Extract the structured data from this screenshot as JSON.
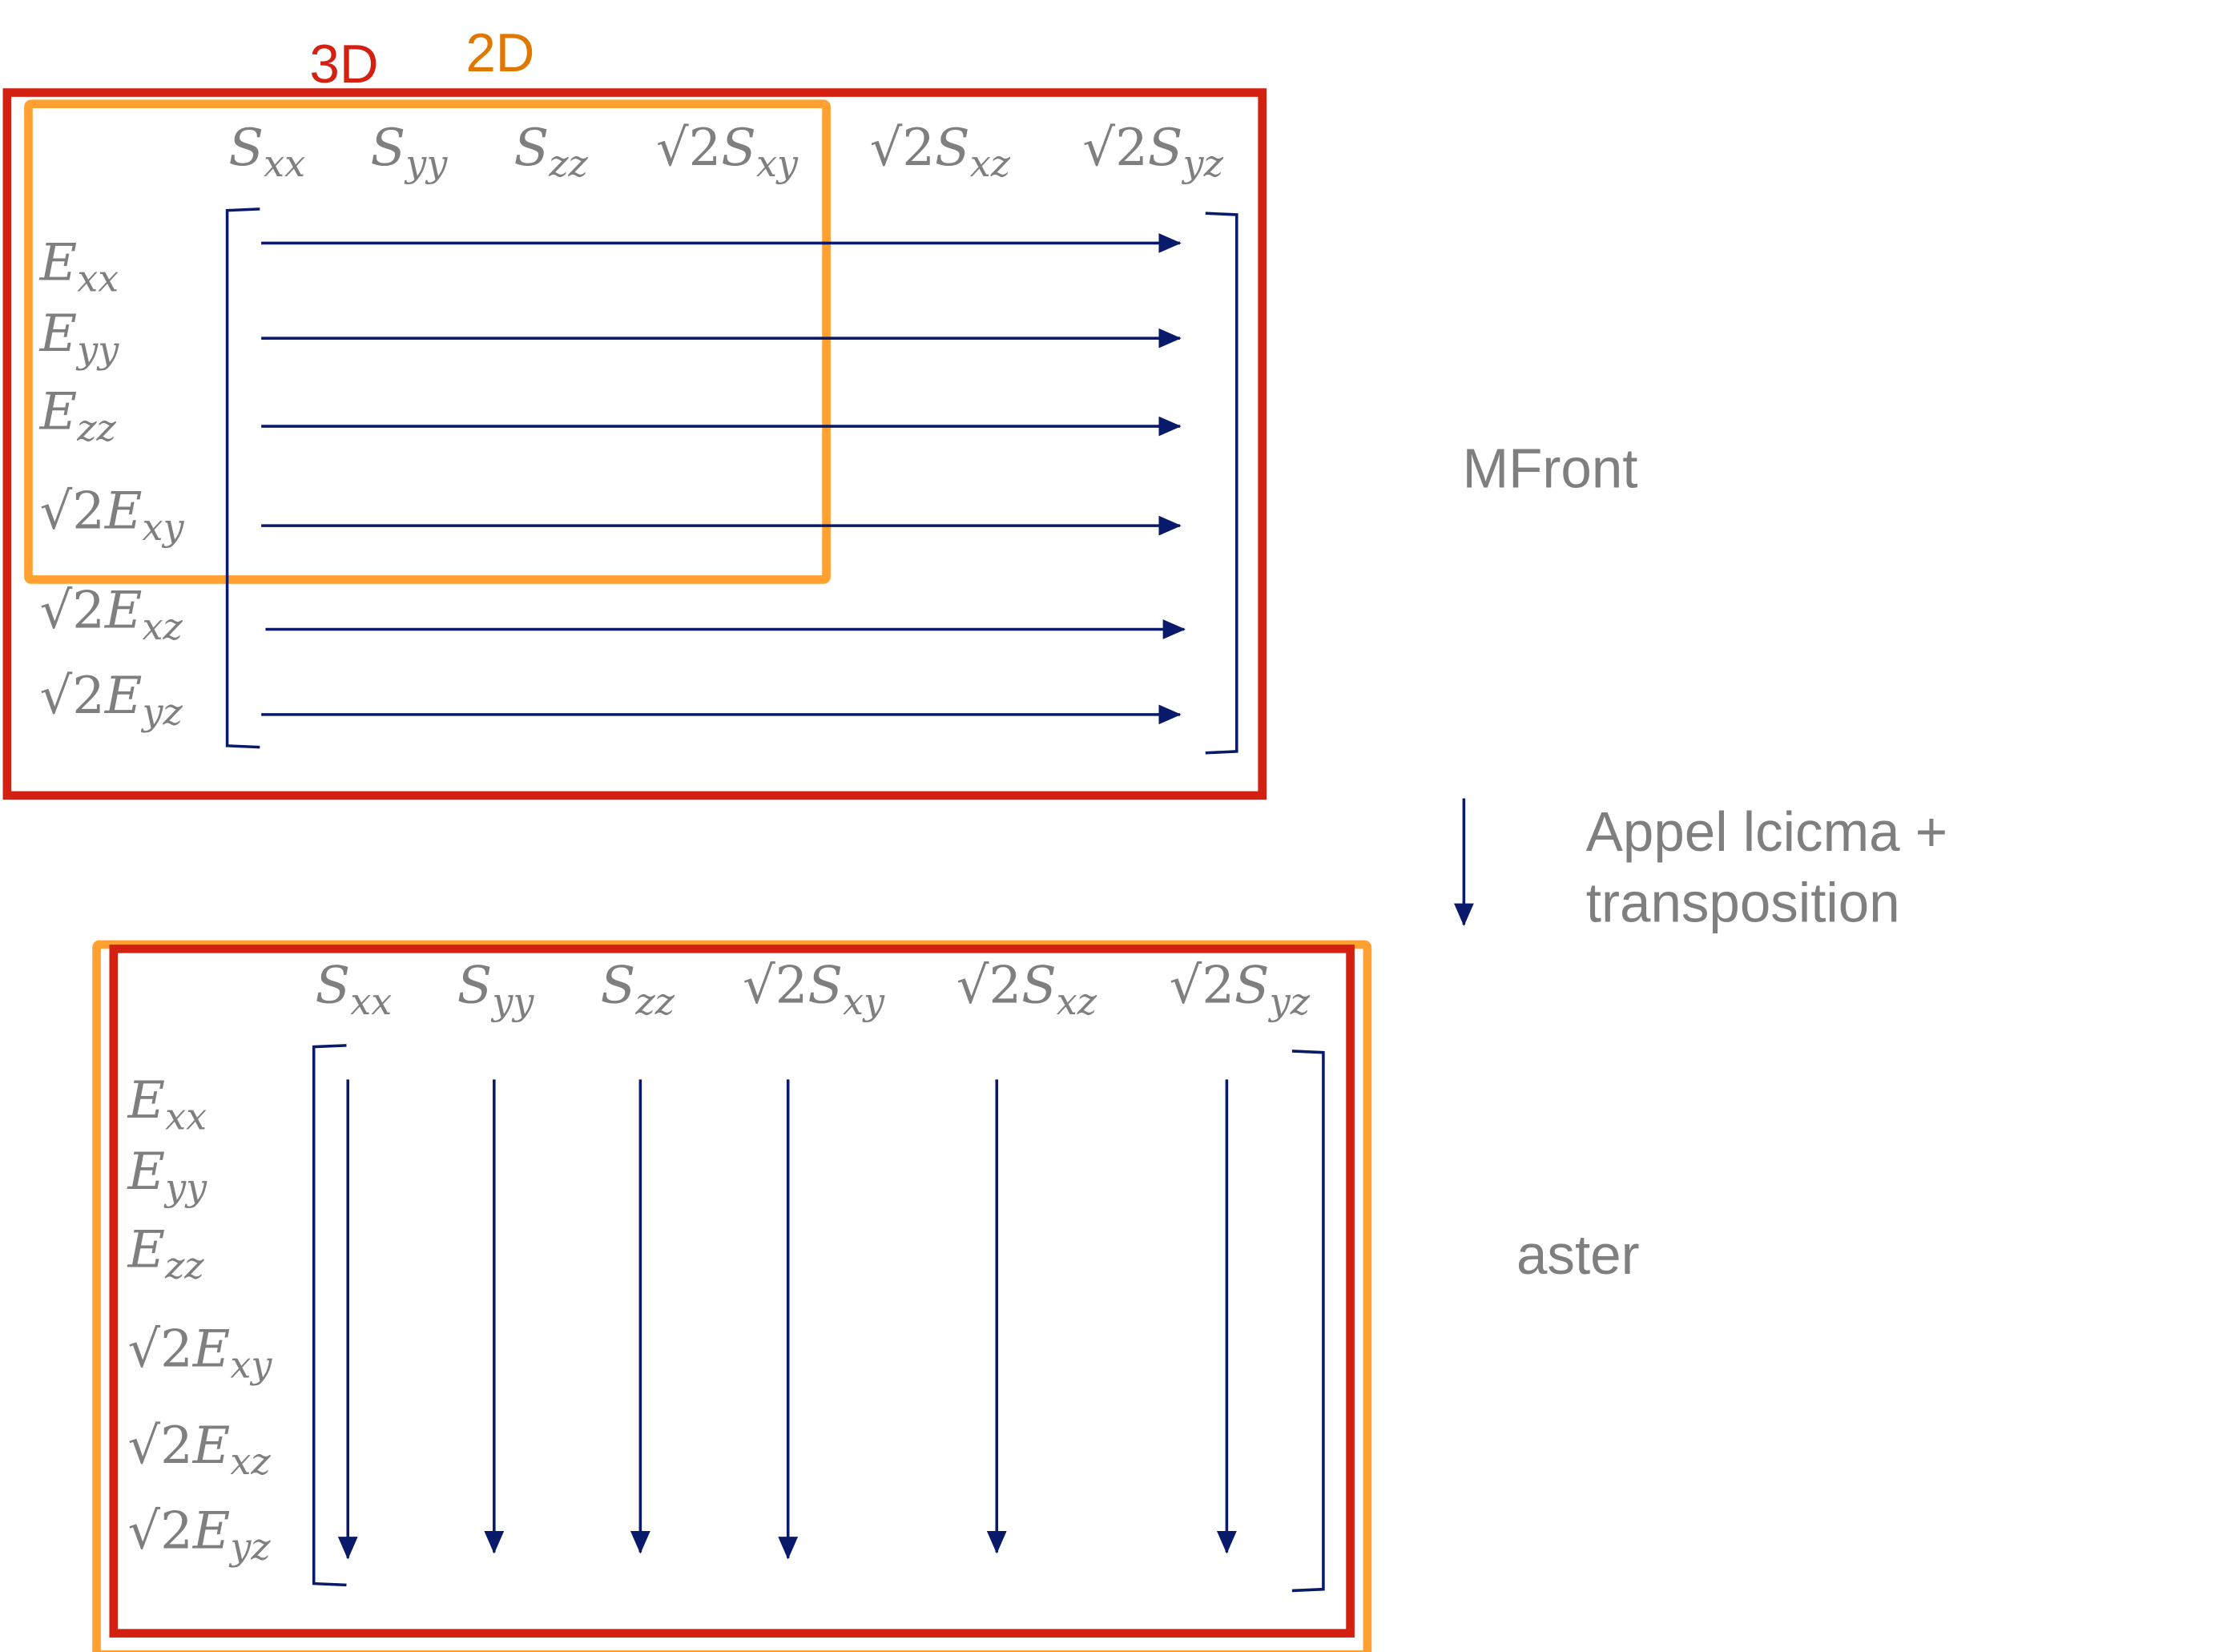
{
  "colors": {
    "red": "#D42010",
    "orange": "#FFA030",
    "orange_text": "#E07800",
    "arrow": "#0A1A6A",
    "text": "#7F7F7F"
  },
  "tags": {
    "three_d": "3D",
    "two_d": "2D"
  },
  "columns": [
    {
      "prefix": "",
      "base": "S",
      "sub": "xx"
    },
    {
      "prefix": "",
      "base": "S",
      "sub": "yy"
    },
    {
      "prefix": "",
      "base": "S",
      "sub": "zz"
    },
    {
      "prefix": "√2",
      "base": "S",
      "sub": "xy"
    },
    {
      "prefix": "√2",
      "base": "S",
      "sub": "xz"
    },
    {
      "prefix": "√2",
      "base": "S",
      "sub": "yz"
    }
  ],
  "rows": [
    {
      "prefix": "",
      "base": "E",
      "sub": "xx"
    },
    {
      "prefix": "",
      "base": "E",
      "sub": "yy"
    },
    {
      "prefix": "",
      "base": "E",
      "sub": "zz"
    },
    {
      "prefix": "√2",
      "base": "E",
      "sub": "xy"
    },
    {
      "prefix": "√2",
      "base": "E",
      "sub": "xz"
    },
    {
      "prefix": "√2",
      "base": "E",
      "sub": "yz"
    }
  ],
  "top_matrix": {
    "label": "MFront",
    "arrow_direction": "row-wise"
  },
  "transition": {
    "line1": "Appel lcicma +",
    "line2": "transposition"
  },
  "bottom_matrix": {
    "label": "aster",
    "arrow_direction": "column-wise"
  }
}
